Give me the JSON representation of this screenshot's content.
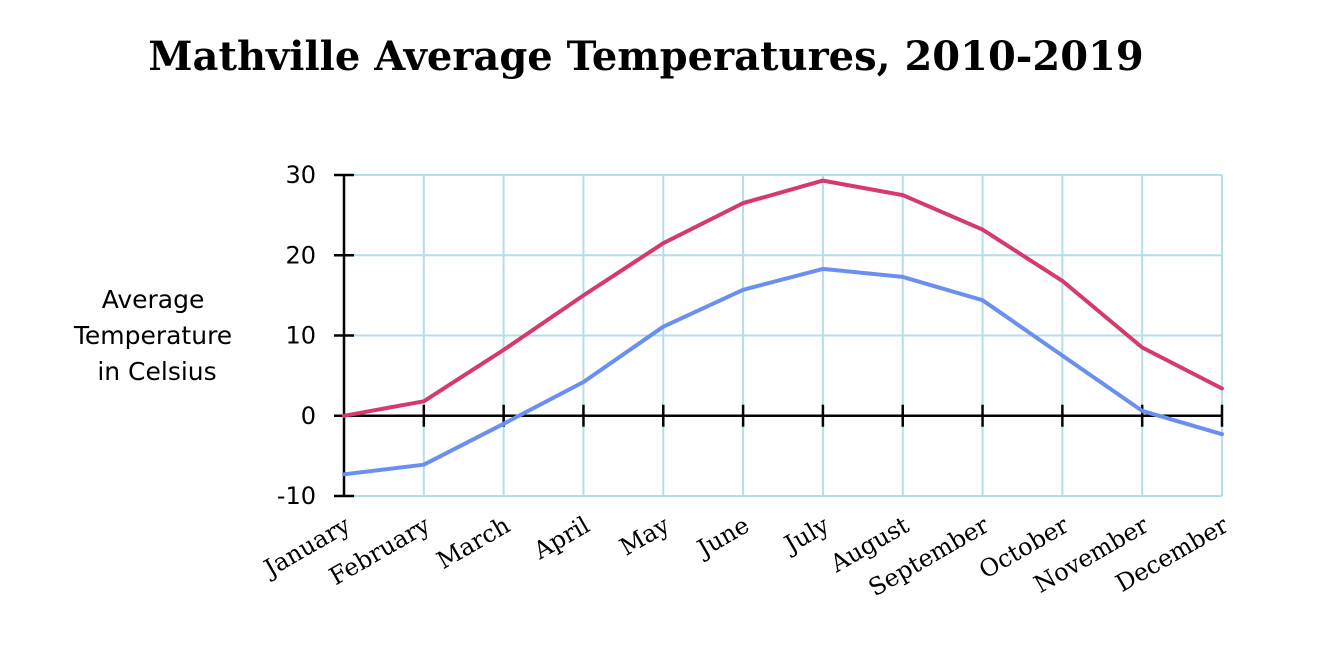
{
  "chart_data": {
    "type": "line",
    "title": "Mathville Average Temperatures, 2010-2019",
    "ylabel": [
      "Average",
      "Temperature",
      "in Celsius"
    ],
    "xlabel": "",
    "categories": [
      "January",
      "February",
      "March",
      "April",
      "May",
      "June",
      "July",
      "August",
      "September",
      "October",
      "November",
      "December"
    ],
    "ylim": [
      -10,
      30
    ],
    "yticks": [
      -10,
      0,
      10,
      20,
      30
    ],
    "ytick_labels": [
      "-10",
      "0",
      "10",
      "20",
      "30"
    ],
    "grid": true,
    "series": [
      {
        "color": "#d63a6c",
        "values": [
          0,
          1.8,
          8.2,
          15,
          21.5,
          26.5,
          29.3,
          27.5,
          23.2,
          16.8,
          8.5,
          3.4
        ]
      },
      {
        "color": "#6a8ff0",
        "values": [
          -7.3,
          -6.1,
          -1,
          4.2,
          11.1,
          15.7,
          18.3,
          17.3,
          14.4,
          7.5,
          0.6,
          -2.3
        ]
      }
    ],
    "colors": {
      "grid": "#b5dde8",
      "axis": "#000000"
    }
  }
}
